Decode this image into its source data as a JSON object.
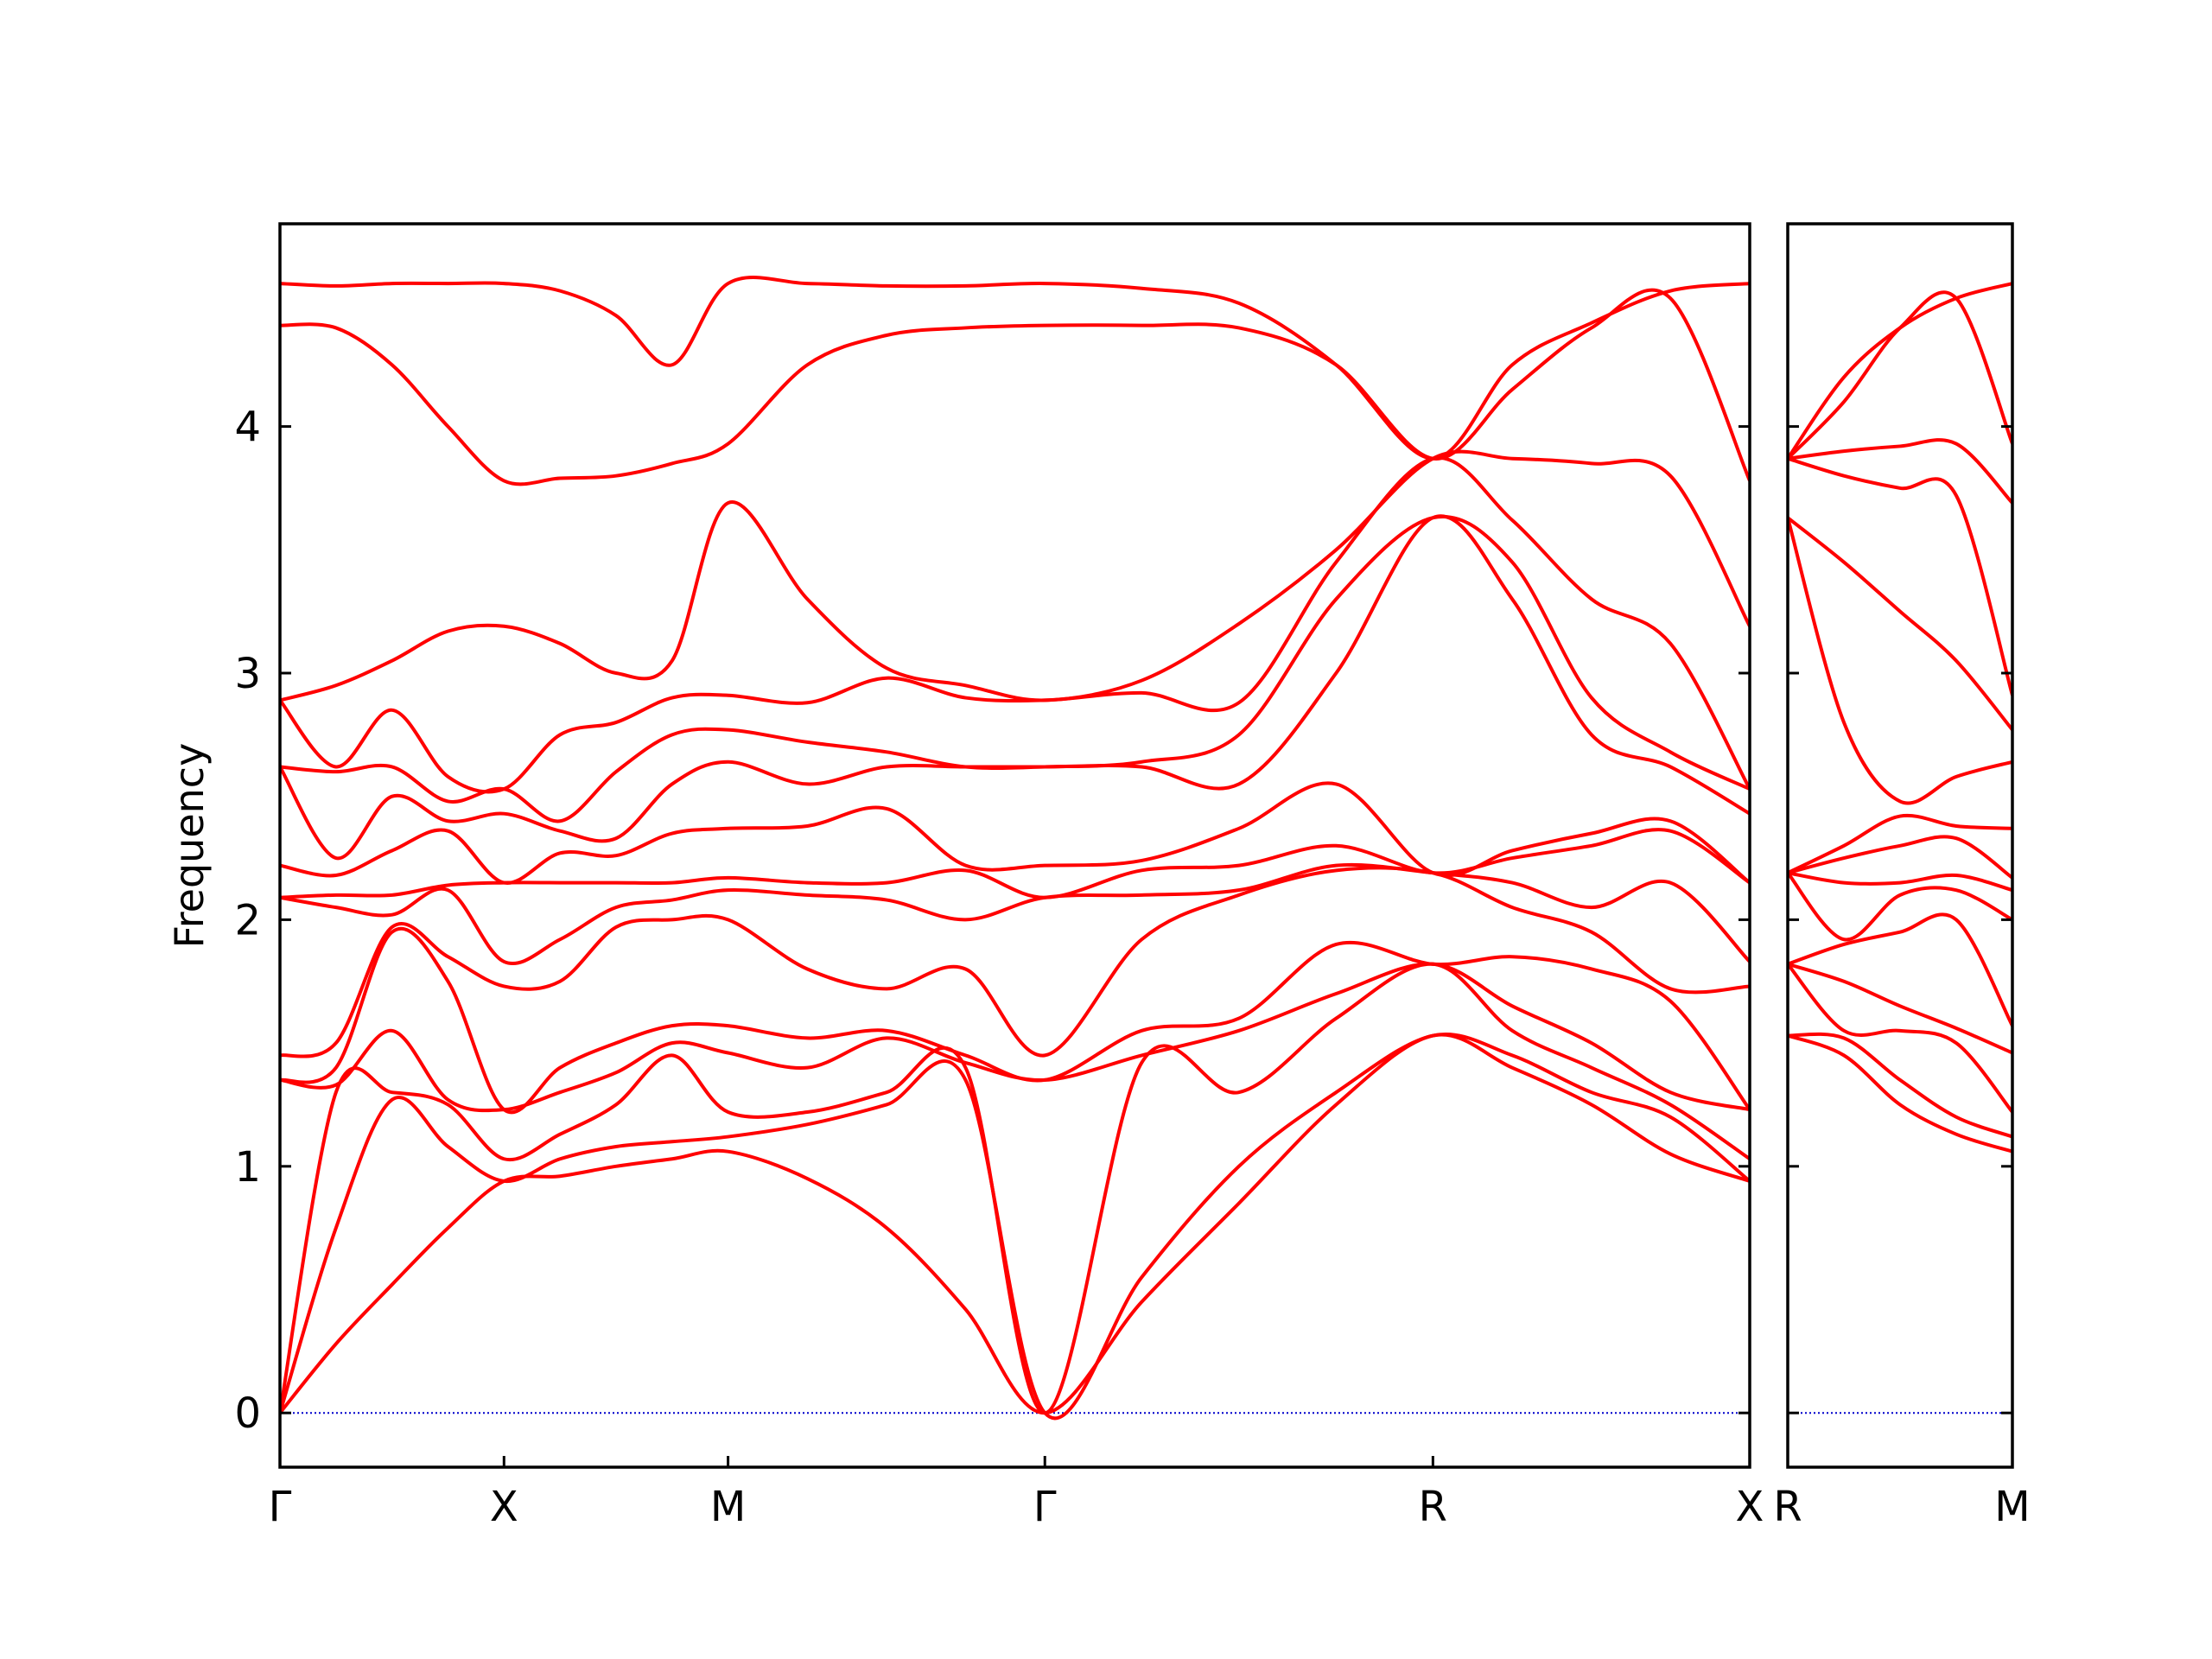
{
  "chart_data": [
    {
      "type": "line",
      "ylabel": "Frequency",
      "color": "#ff0000",
      "hline": {
        "y": 0,
        "color": "#0000cc",
        "style": "dotted"
      },
      "xlim": [
        0,
        3.28
      ],
      "ylim": [
        -0.22,
        4.822
      ],
      "yticks": [
        0,
        1,
        2,
        3,
        4
      ],
      "xticks": [
        {
          "value": 0,
          "label": "Γ"
        },
        {
          "value": 0.5,
          "label": "X"
        },
        {
          "value": 1.0,
          "label": "M"
        },
        {
          "value": 1.707,
          "label": "Γ"
        },
        {
          "value": 2.573,
          "label": "R"
        },
        {
          "value": 3.28,
          "label": "X"
        }
      ],
      "x": [
        0,
        0.125,
        0.25,
        0.375,
        0.5,
        0.625,
        0.75,
        0.875,
        1.0,
        1.177,
        1.354,
        1.53,
        1.707,
        1.923,
        2.14,
        2.357,
        2.573,
        2.75,
        2.927,
        3.103,
        3.28
      ],
      "series": [
        {
          "values": [
            0,
            0.28,
            0.52,
            0.75,
            0.94,
            0.96,
            1.0,
            1.03,
            1.06,
            0.95,
            0.75,
            0.42,
            0,
            0.45,
            0.85,
            1.25,
            1.53,
            1.4,
            1.25,
            1.05,
            0.94
          ]
        },
        {
          "values": [
            0,
            0.75,
            1.27,
            1.08,
            0.94,
            1.03,
            1.08,
            1.1,
            1.12,
            1.17,
            1.25,
            1.35,
            0,
            0.55,
            1.0,
            1.3,
            1.53,
            1.45,
            1.3,
            1.2,
            0.94
          ]
        },
        {
          "values": [
            0,
            1.3,
            1.3,
            1.25,
            1.03,
            1.13,
            1.25,
            1.45,
            1.22,
            1.22,
            1.3,
            1.4,
            0,
            1.42,
            1.3,
            1.6,
            1.82,
            1.55,
            1.4,
            1.25,
            1.03
          ]
        },
        {
          "values": [
            1.35,
            1.33,
            1.55,
            1.27,
            1.23,
            1.3,
            1.38,
            1.5,
            1.46,
            1.4,
            1.52,
            1.42,
            1.35,
            1.45,
            1.55,
            1.7,
            1.82,
            1.65,
            1.5,
            1.3,
            1.23
          ]
        },
        {
          "values": [
            1.35,
            1.4,
            1.95,
            1.75,
            1.23,
            1.4,
            1.5,
            1.57,
            1.57,
            1.52,
            1.55,
            1.45,
            1.35,
            1.55,
            1.6,
            1.9,
            1.82,
            1.85,
            1.8,
            1.67,
            1.23
          ]
        },
        {
          "values": [
            1.45,
            1.5,
            1.97,
            1.85,
            1.73,
            1.75,
            1.97,
            2.0,
            2.0,
            1.8,
            1.72,
            1.8,
            1.45,
            1.92,
            2.1,
            2.2,
            2.19,
            2.05,
            1.95,
            1.72,
            1.73
          ]
        },
        {
          "values": [
            2.09,
            2.05,
            2.02,
            2.12,
            1.83,
            1.92,
            2.05,
            2.08,
            2.12,
            2.1,
            2.08,
            2.0,
            2.09,
            2.1,
            2.12,
            2.22,
            2.19,
            2.15,
            2.05,
            2.15,
            1.83
          ]
        },
        {
          "values": [
            2.09,
            2.1,
            2.1,
            2.14,
            2.15,
            2.15,
            2.15,
            2.15,
            2.17,
            2.15,
            2.15,
            2.2,
            2.09,
            2.2,
            2.22,
            2.3,
            2.19,
            2.25,
            2.3,
            2.36,
            2.15
          ]
        },
        {
          "values": [
            2.22,
            2.18,
            2.28,
            2.36,
            2.15,
            2.27,
            2.26,
            2.35,
            2.37,
            2.38,
            2.45,
            2.22,
            2.22,
            2.24,
            2.37,
            2.55,
            2.19,
            2.28,
            2.35,
            2.4,
            2.15
          ]
        },
        {
          "values": [
            2.62,
            2.25,
            2.5,
            2.4,
            2.43,
            2.36,
            2.33,
            2.55,
            2.64,
            2.55,
            2.62,
            2.62,
            2.62,
            2.62,
            2.55,
            3.0,
            3.63,
            3.3,
            2.75,
            2.62,
            2.43
          ]
        },
        {
          "values": [
            2.62,
            2.6,
            2.62,
            2.48,
            2.53,
            2.4,
            2.6,
            2.75,
            2.77,
            2.72,
            2.68,
            2.62,
            2.62,
            2.64,
            2.75,
            3.3,
            3.63,
            3.45,
            2.9,
            2.68,
            2.53
          ]
        },
        {
          "values": [
            2.89,
            2.62,
            2.85,
            2.58,
            2.53,
            2.75,
            2.8,
            2.9,
            2.91,
            2.88,
            2.98,
            2.9,
            2.89,
            2.92,
            2.88,
            3.45,
            3.87,
            3.62,
            3.3,
            3.12,
            2.53
          ]
        },
        {
          "values": [
            2.89,
            2.95,
            3.05,
            3.17,
            3.19,
            3.12,
            3.0,
            3.05,
            3.69,
            3.3,
            3.02,
            2.95,
            2.89,
            2.97,
            3.2,
            3.5,
            3.87,
            3.87,
            3.85,
            3.8,
            3.19
          ]
        },
        {
          "values": [
            4.41,
            4.4,
            4.25,
            4.0,
            3.78,
            3.79,
            3.8,
            3.85,
            3.93,
            4.25,
            4.37,
            4.4,
            4.41,
            4.41,
            4.4,
            4.25,
            3.87,
            4.15,
            4.4,
            4.52,
            3.78
          ]
        },
        {
          "values": [
            4.58,
            4.57,
            4.58,
            4.58,
            4.58,
            4.55,
            4.45,
            4.25,
            4.58,
            4.58,
            4.57,
            4.57,
            4.58,
            4.56,
            4.5,
            4.25,
            3.87,
            4.25,
            4.42,
            4.55,
            4.58
          ]
        }
      ]
    },
    {
      "type": "line",
      "color": "#ff0000",
      "hline": {
        "y": 0,
        "color": "#0000cc",
        "style": "dotted"
      },
      "show_ytick_labels": false,
      "xlim": [
        0,
        0.5
      ],
      "ylim": [
        -0.22,
        4.822
      ],
      "yticks": [
        0,
        1,
        2,
        3,
        4
      ],
      "xticks": [
        {
          "value": 0,
          "label": "R"
        },
        {
          "value": 0.5,
          "label": "M"
        }
      ],
      "x": [
        0,
        0.125,
        0.25,
        0.375,
        0.5
      ],
      "series": [
        {
          "values": [
            1.53,
            1.45,
            1.25,
            1.13,
            1.06
          ]
        },
        {
          "values": [
            1.53,
            1.52,
            1.35,
            1.2,
            1.12
          ]
        },
        {
          "values": [
            1.82,
            1.55,
            1.55,
            1.5,
            1.22
          ]
        },
        {
          "values": [
            1.82,
            1.75,
            1.65,
            1.56,
            1.46
          ]
        },
        {
          "values": [
            1.82,
            1.9,
            1.95,
            2.0,
            1.57
          ]
        },
        {
          "values": [
            2.19,
            1.92,
            2.1,
            2.12,
            2.0
          ]
        },
        {
          "values": [
            2.19,
            2.15,
            2.15,
            2.18,
            2.12
          ]
        },
        {
          "values": [
            2.19,
            2.25,
            2.3,
            2.33,
            2.17
          ]
        },
        {
          "values": [
            2.19,
            2.3,
            2.42,
            2.38,
            2.37
          ]
        },
        {
          "values": [
            3.63,
            2.8,
            2.48,
            2.58,
            2.64
          ]
        },
        {
          "values": [
            3.63,
            3.45,
            3.25,
            3.05,
            2.77
          ]
        },
        {
          "values": [
            3.87,
            3.8,
            3.75,
            3.72,
            2.91
          ]
        },
        {
          "values": [
            3.87,
            3.9,
            3.92,
            3.93,
            3.69
          ]
        },
        {
          "values": [
            3.87,
            4.1,
            4.4,
            4.52,
            3.93
          ]
        },
        {
          "values": [
            3.87,
            4.2,
            4.4,
            4.52,
            4.58
          ]
        }
      ]
    }
  ]
}
